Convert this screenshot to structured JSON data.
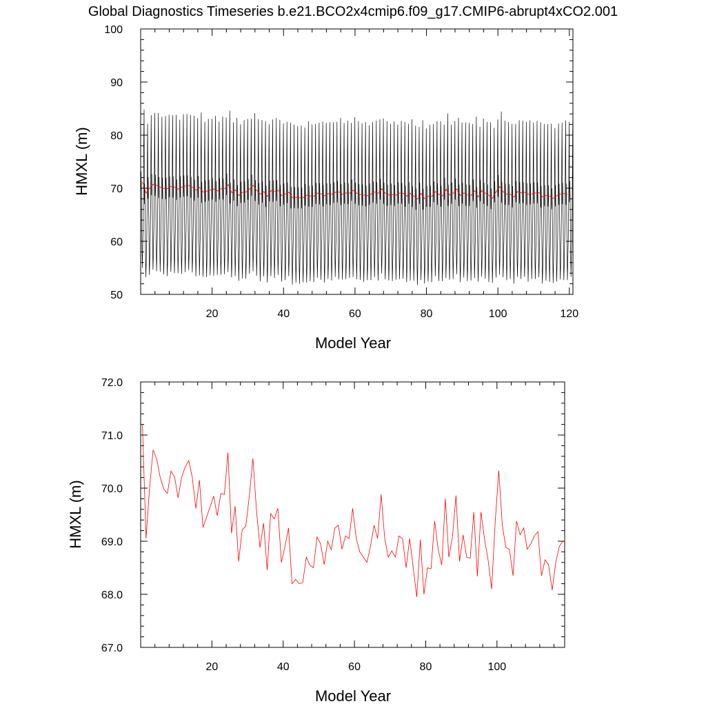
{
  "title": "Global Diagnostics Timeseries b.e21.BCO2x4cmip6.f09_g17.CMIP6-abrupt4xCO2.001",
  "colors": {
    "monthly": "#000000",
    "annual": "#ff0000",
    "frame": "#000000"
  },
  "chart_data": [
    {
      "type": "line",
      "xlabel": "Model Year",
      "ylabel": "HMXL (m)",
      "xlim": [
        0,
        121
      ],
      "ylim": [
        50,
        100
      ],
      "xticks": [
        20,
        40,
        60,
        80,
        100,
        120
      ],
      "yticks": [
        50,
        60,
        70,
        80,
        90,
        100
      ],
      "ytick_labels": [
        "50",
        "60",
        "70",
        "80",
        "90",
        "100"
      ],
      "grid": false,
      "monthly_series": {
        "x_start": 0.0417,
        "x_step": 0.0833333,
        "seasonal_cycle": [
          70.6,
          74.6,
          71.0,
          66.2,
          60.1,
          56.4,
          58.9,
          62.0,
          64.3,
          69.8,
          79.6,
          86.2
        ],
        "amplitude_scale": [
          1.0,
          0.97,
          1.01,
          0.99,
          1.0,
          0.98,
          1.0,
          1.02,
          0.99,
          1.0,
          0.97,
          1.01,
          1.0,
          0.98,
          0.99,
          1.0,
          1.03,
          0.98,
          1.0,
          0.99,
          1.01,
          0.97,
          1.0,
          0.99,
          1.02,
          0.98,
          1.0,
          0.99,
          1.0,
          1.01,
          0.98,
          1.0,
          0.99,
          1.02,
          0.98,
          1.0,
          0.99,
          1.01,
          0.98,
          1.0,
          1.0,
          0.97,
          1.01,
          0.99,
          1.0,
          0.98,
          1.02,
          0.99,
          1.0,
          0.98,
          1.0,
          1.01,
          0.99,
          1.0,
          0.98,
          1.02,
          0.99,
          1.0,
          0.98,
          1.01,
          1.0,
          0.99,
          1.01,
          0.98,
          1.0,
          0.99,
          1.02,
          0.98,
          1.0,
          0.99,
          1.01,
          0.98,
          1.0,
          0.99,
          1.0,
          1.02,
          0.98,
          1.0,
          1.01,
          0.98,
          0.99,
          1.0,
          0.98,
          1.01,
          0.99,
          1.04,
          0.98,
          1.0,
          0.99,
          1.01,
          0.98,
          1.0,
          0.99,
          1.02,
          0.98,
          1.0,
          0.99,
          1.01,
          0.98,
          1.0,
          1.03,
          0.99,
          1.0,
          0.98,
          1.01,
          0.99,
          1.0,
          0.98,
          1.02,
          0.99,
          1.0,
          0.98,
          1.01,
          0.99,
          1.0,
          0.98,
          1.0,
          0.99,
          1.01,
          1.0,
          0.99
        ]
      },
      "annual_series": {
        "x_start": 0.5,
        "values": [
          71.2,
          69.05,
          70.0,
          70.72,
          70.55,
          70.2,
          69.98,
          69.9,
          70.32,
          70.22,
          69.82,
          70.2,
          70.4,
          70.52,
          70.2,
          69.62,
          70.15,
          69.26,
          69.45,
          69.65,
          69.85,
          69.48,
          69.9,
          69.88,
          70.67,
          69.15,
          69.66,
          68.62,
          69.22,
          69.28,
          69.85,
          70.56,
          69.58,
          68.88,
          69.34,
          68.46,
          69.52,
          69.42,
          69.62,
          68.6,
          68.9,
          69.25,
          68.2,
          68.28,
          68.2,
          68.22,
          68.7,
          68.55,
          68.5,
          69.08,
          68.95,
          68.56,
          69.0,
          68.84,
          69.25,
          69.3,
          68.85,
          69.1,
          69.05,
          69.62,
          69.05,
          68.8,
          68.7,
          68.6,
          68.9,
          69.3,
          69.05,
          69.88,
          69.05,
          68.7,
          68.82,
          68.7,
          69.1,
          69.05,
          68.5,
          69.05,
          68.5,
          67.95,
          69.03,
          68.0,
          68.5,
          68.48,
          69.38,
          68.85,
          68.55,
          69.8,
          68.7,
          69.08,
          69.86,
          68.62,
          69.12,
          68.7,
          68.68,
          69.55,
          68.34,
          69.55,
          69.05,
          68.65,
          68.1,
          69.35,
          70.33,
          69.3,
          68.88,
          68.85,
          68.35,
          69.38,
          69.12,
          69.25,
          68.85,
          68.95,
          69.1,
          69.18,
          68.35,
          68.65,
          68.55,
          68.08,
          68.6,
          68.9,
          69.0,
          68.9
        ]
      }
    },
    {
      "type": "line",
      "xlabel": "Model Year",
      "ylabel": "HMXL (m)",
      "xlim": [
        0,
        119
      ],
      "ylim": [
        67,
        72
      ],
      "xticks": [
        20,
        40,
        60,
        80,
        100
      ],
      "yticks": [
        67,
        68,
        69,
        70,
        71,
        72
      ],
      "ytick_labels": [
        "67.0",
        "68.0",
        "69.0",
        "70.0",
        "71.0",
        "72.0"
      ],
      "grid": false,
      "series_ref": "annual_series"
    }
  ]
}
